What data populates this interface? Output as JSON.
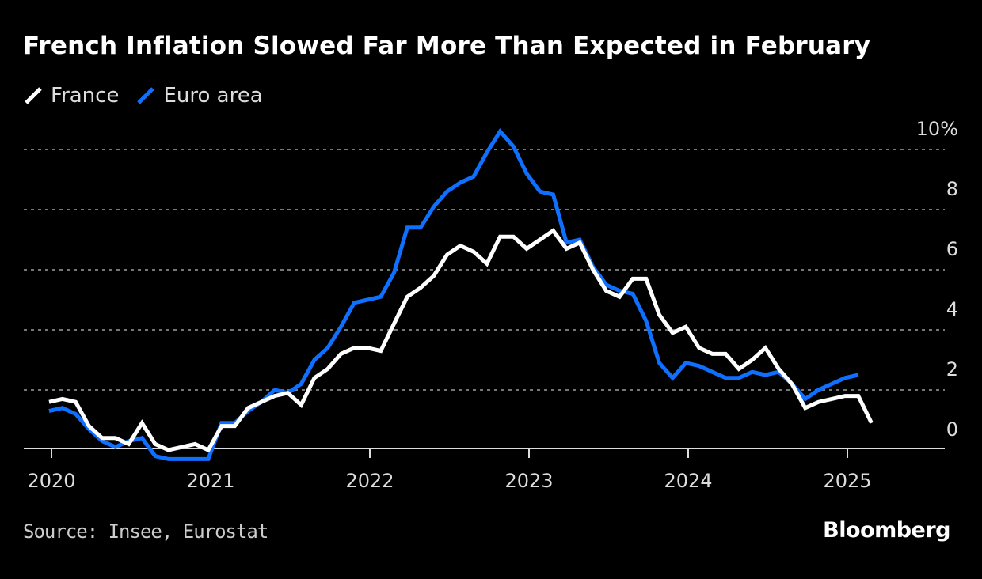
{
  "chart_data": {
    "type": "line",
    "title": "French Inflation Slowed Far More Than Expected in February",
    "source": "Source: Insee, Eurostat",
    "logo": "Bloomberg",
    "ylim": [
      -0.5,
      10.6
    ],
    "yticks": [
      0,
      2,
      4,
      6,
      8,
      10
    ],
    "ytick_labels": [
      "0",
      "2",
      "4",
      "6",
      "8",
      "10%"
    ],
    "xticks": [
      "2020",
      "2021",
      "2022",
      "2023",
      "2024",
      "2025"
    ],
    "grid": "horizontal dotted",
    "legend_position": "top-left",
    "series": [
      {
        "name": "France",
        "color": "#ffffff",
        "start": "2019-12",
        "values": [
          1.6,
          1.7,
          1.6,
          0.8,
          0.4,
          0.4,
          0.2,
          0.9,
          0.2,
          0.0,
          0.1,
          0.2,
          0.0,
          0.8,
          0.8,
          1.4,
          1.6,
          1.8,
          1.9,
          1.5,
          2.4,
          2.7,
          3.2,
          3.4,
          3.4,
          3.3,
          4.2,
          5.1,
          5.4,
          5.8,
          6.5,
          6.8,
          6.6,
          6.2,
          7.1,
          7.1,
          6.7,
          7.0,
          7.3,
          6.7,
          6.9,
          6.0,
          5.3,
          5.1,
          5.7,
          5.7,
          4.5,
          3.9,
          4.1,
          3.4,
          3.2,
          3.2,
          2.7,
          3.0,
          3.4,
          2.7,
          2.2,
          1.4,
          1.6,
          1.7,
          1.8,
          1.8,
          0.9
        ]
      },
      {
        "name": "Euro area",
        "color": "#0f6fff",
        "start": "2019-12",
        "values": [
          1.3,
          1.4,
          1.2,
          0.7,
          0.3,
          0.1,
          0.3,
          0.4,
          -0.2,
          -0.3,
          -0.3,
          -0.3,
          -0.3,
          0.9,
          0.9,
          1.3,
          1.6,
          2.0,
          1.9,
          2.2,
          3.0,
          3.4,
          4.1,
          4.9,
          5.0,
          5.1,
          5.9,
          7.4,
          7.4,
          8.1,
          8.6,
          8.9,
          9.1,
          9.9,
          10.6,
          10.1,
          9.2,
          8.6,
          8.5,
          6.9,
          7.0,
          6.1,
          5.5,
          5.3,
          5.2,
          4.3,
          2.9,
          2.4,
          2.9,
          2.8,
          2.6,
          2.4,
          2.4,
          2.6,
          2.5,
          2.6,
          2.2,
          1.7,
          2.0,
          2.2,
          2.4,
          2.5
        ]
      }
    ]
  }
}
